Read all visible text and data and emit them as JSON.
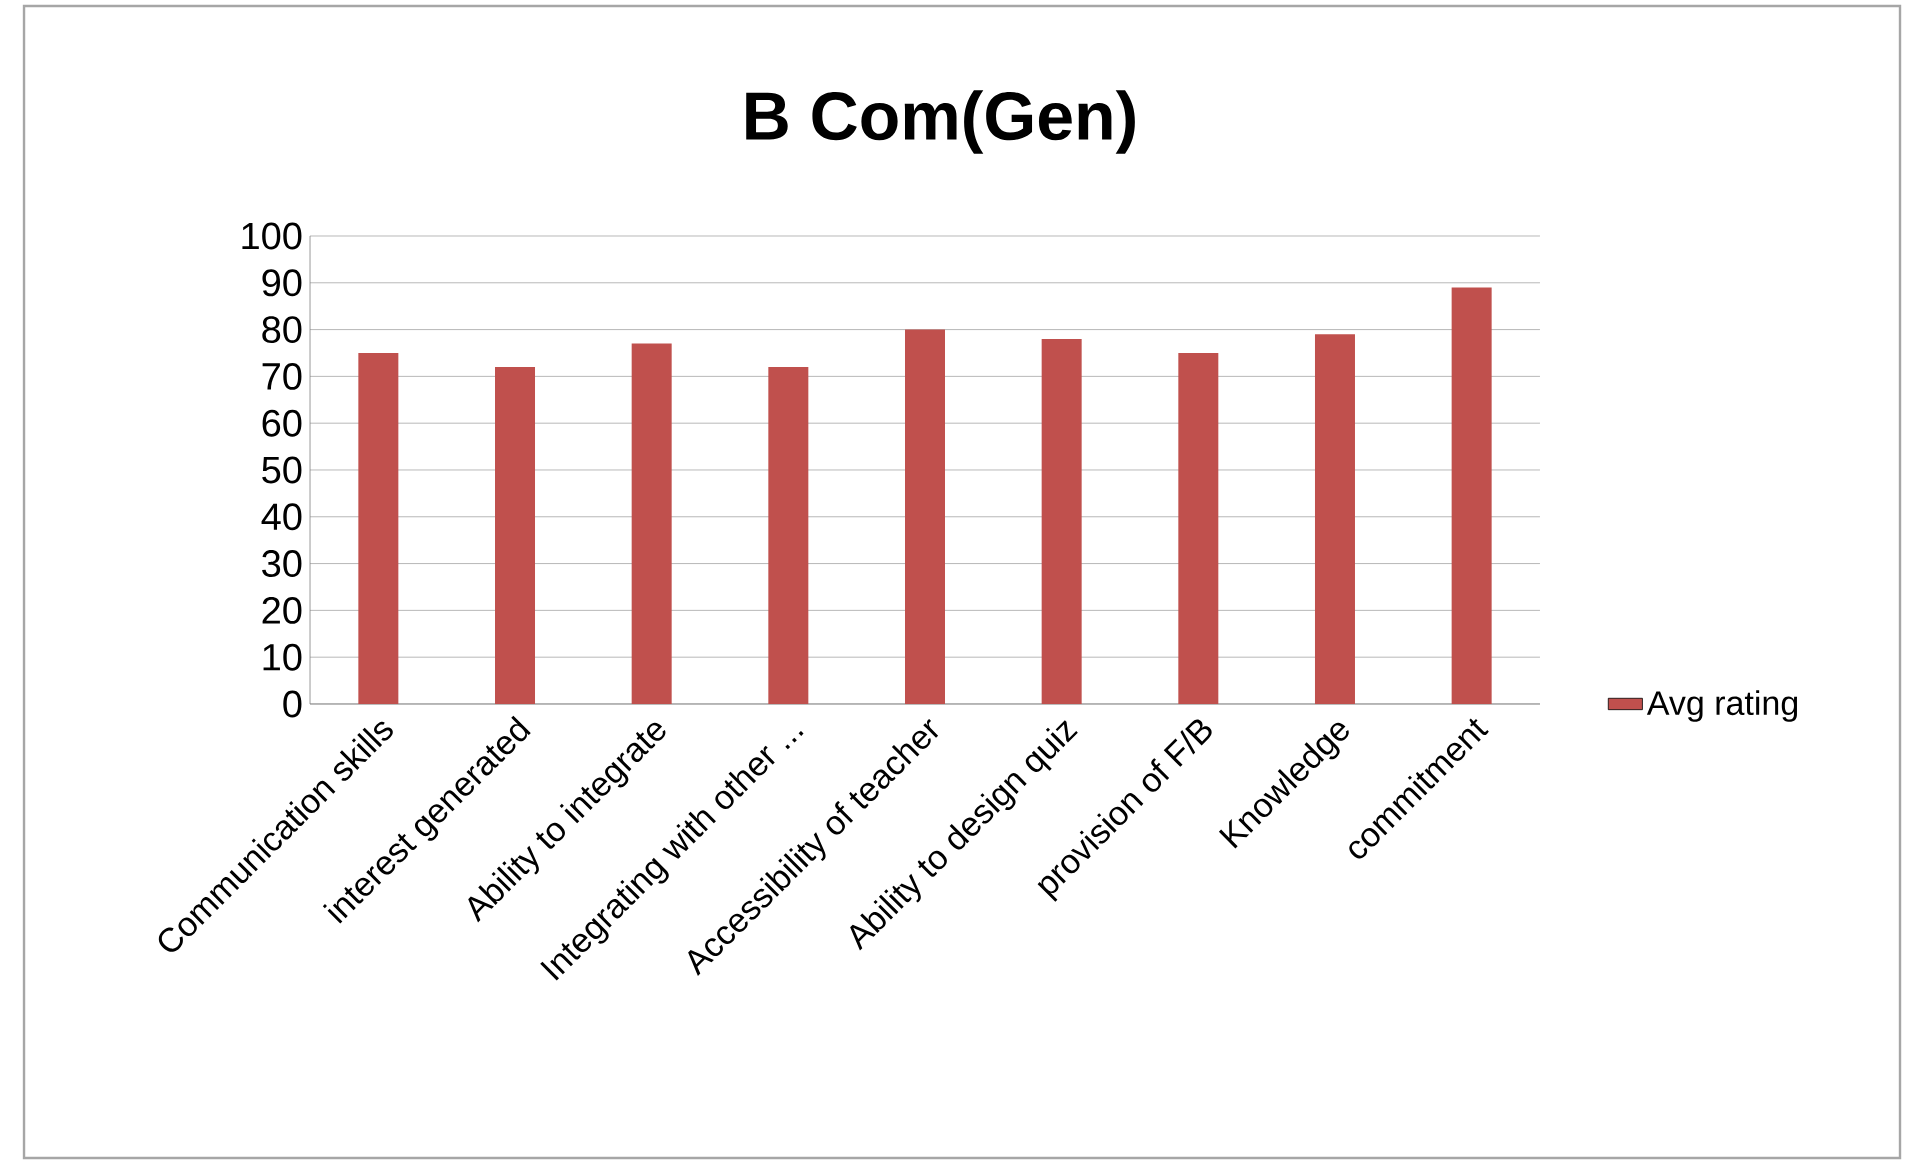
{
  "chart_data": {
    "type": "bar",
    "title": "B Com(Gen)",
    "categories": [
      "Communication skills",
      "interest generated",
      "Ability to integrate",
      "Integrating with other ...",
      "Accessibility of teacher",
      "Ability to design quiz",
      "provision of F/B",
      "Knowledge",
      "commitment"
    ],
    "series": [
      {
        "name": "Avg rating",
        "color": "#c0504d",
        "values": [
          75,
          72,
          77,
          72,
          80,
          78,
          75,
          79,
          89
        ]
      }
    ],
    "ylim": [
      0,
      100
    ],
    "yticks": [
      0,
      10,
      20,
      30,
      40,
      50,
      60,
      70,
      80,
      90,
      100
    ],
    "grid": "y",
    "legend": "right"
  }
}
